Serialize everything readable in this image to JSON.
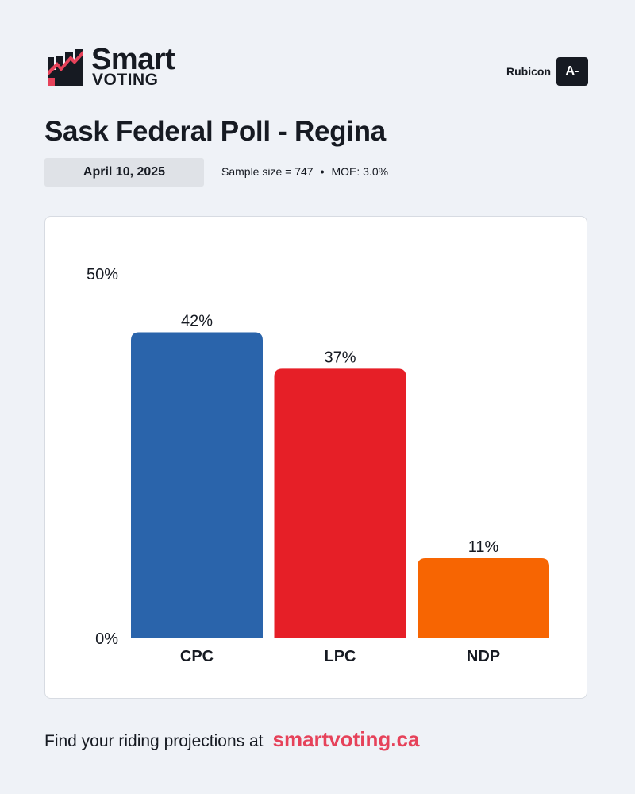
{
  "brand": {
    "smart": "Smart",
    "voting": "VOTING",
    "accent_color": "#e6425a",
    "dark_color": "#161a22",
    "icon": "bar-chart-logo-icon"
  },
  "pollster": {
    "name": "Rubicon",
    "grade": "A-"
  },
  "title": "Sask Federal Poll - Regina",
  "date": "April 10, 2025",
  "meta": {
    "sample": "Sample size = 747",
    "separator": "•",
    "moe": "MOE: 3.0%"
  },
  "chart_data": {
    "type": "bar",
    "categories": [
      "CPC",
      "LPC",
      "NDP"
    ],
    "values": [
      42,
      37,
      11
    ],
    "value_labels": [
      "42%",
      "37%",
      "11%"
    ],
    "colors": [
      "#2a64ab",
      "#e61f27",
      "#f76502"
    ],
    "ylim": [
      0,
      50
    ],
    "y_tick_labels": [
      "0%",
      "50%"
    ],
    "grid": false
  },
  "footer": {
    "text": "Find your riding projections at",
    "link": "smartvoting.ca"
  }
}
